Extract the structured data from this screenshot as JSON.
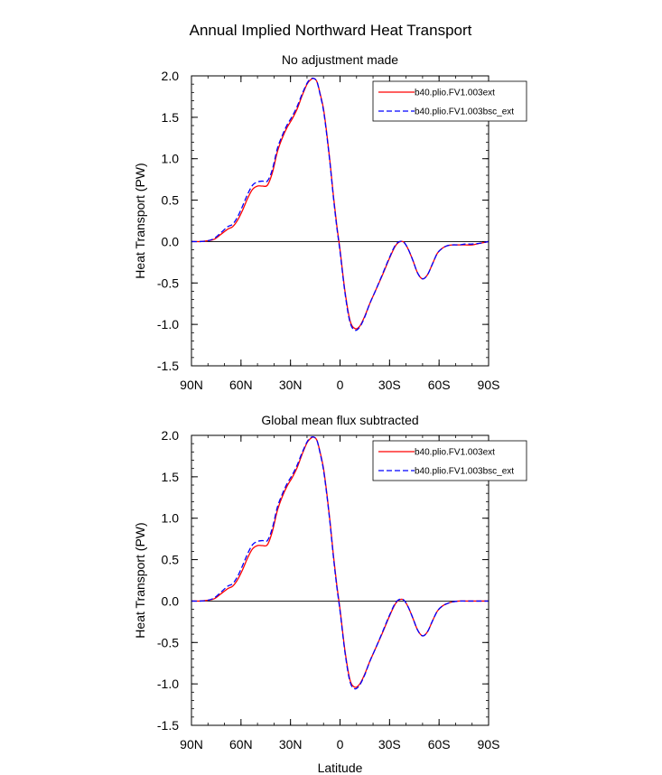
{
  "figure": {
    "title": "Annual Implied Northward Heat Transport"
  },
  "legend": {
    "placement": "top-right",
    "entries": [
      {
        "name": "b40.plio.FV1.003ext",
        "color": "#ff0000",
        "dash": "solid"
      },
      {
        "name": "b40.plio.FV1.003bsc_ext",
        "color": "#0000ff",
        "dash": "dashed"
      }
    ]
  },
  "chart_data": [
    {
      "type": "line",
      "title": "No adjustment made",
      "xlabel": "",
      "ylabel": "Heat Transport (PW)",
      "xlim": [
        90,
        -90
      ],
      "ylim": [
        -1.5,
        2.0
      ],
      "x_ticks": [
        {
          "value": 90,
          "label": "90N"
        },
        {
          "value": 60,
          "label": "60N"
        },
        {
          "value": 30,
          "label": "30N"
        },
        {
          "value": 0,
          "label": "0"
        },
        {
          "value": -30,
          "label": "30S"
        },
        {
          "value": -60,
          "label": "60S"
        },
        {
          "value": -90,
          "label": "90S"
        }
      ],
      "y_ticks": [
        {
          "value": 2.0,
          "label": "2.0"
        },
        {
          "value": 1.5,
          "label": "1.5"
        },
        {
          "value": 1.0,
          "label": "1.0"
        },
        {
          "value": 0.5,
          "label": "0.5"
        },
        {
          "value": 0.0,
          "label": "0.0"
        },
        {
          "value": -0.5,
          "label": "-0.5"
        },
        {
          "value": -1.0,
          "label": "-1.0"
        },
        {
          "value": -1.5,
          "label": "-1.5"
        }
      ],
      "grid": false,
      "zero_line": true,
      "x": [
        90,
        85,
        80,
        76,
        72,
        68,
        65,
        62,
        59,
        56,
        53,
        50,
        47,
        44,
        41,
        38,
        35,
        32,
        29,
        26,
        23,
        20,
        18,
        16,
        14,
        12,
        10,
        8,
        6,
        4,
        2,
        0,
        -3,
        -6,
        -9,
        -12,
        -15,
        -18,
        -22,
        -26,
        -30,
        -34,
        -38,
        -41,
        -44,
        -47,
        -50,
        -53,
        -56,
        -59,
        -62,
        -65,
        -68,
        -72,
        -76,
        -80,
        -85,
        -90
      ],
      "series": [
        {
          "name": "b40.plio.FV1.003ext",
          "values": [
            0.0,
            0.0,
            0.01,
            0.03,
            0.09,
            0.15,
            0.18,
            0.26,
            0.38,
            0.52,
            0.63,
            0.67,
            0.67,
            0.68,
            0.83,
            1.08,
            1.25,
            1.38,
            1.48,
            1.6,
            1.76,
            1.9,
            1.95,
            1.97,
            1.93,
            1.78,
            1.6,
            1.3,
            0.95,
            0.55,
            0.2,
            -0.1,
            -0.6,
            -0.95,
            -1.05,
            -1.02,
            -0.9,
            -0.75,
            -0.57,
            -0.39,
            -0.2,
            -0.04,
            0.0,
            -0.08,
            -0.22,
            -0.38,
            -0.45,
            -0.4,
            -0.27,
            -0.14,
            -0.08,
            -0.05,
            -0.04,
            -0.04,
            -0.04,
            -0.04,
            -0.02,
            0.0
          ]
        },
        {
          "name": "b40.plio.FV1.003bsc_ext",
          "values": [
            0.0,
            0.0,
            0.01,
            0.04,
            0.11,
            0.18,
            0.21,
            0.3,
            0.43,
            0.57,
            0.68,
            0.72,
            0.73,
            0.73,
            0.87,
            1.12,
            1.28,
            1.41,
            1.51,
            1.63,
            1.78,
            1.91,
            1.96,
            1.97,
            1.93,
            1.77,
            1.58,
            1.28,
            0.93,
            0.53,
            0.18,
            -0.12,
            -0.62,
            -0.97,
            -1.07,
            -1.03,
            -0.91,
            -0.75,
            -0.57,
            -0.38,
            -0.19,
            -0.03,
            0.0,
            -0.08,
            -0.22,
            -0.38,
            -0.45,
            -0.4,
            -0.27,
            -0.14,
            -0.08,
            -0.05,
            -0.04,
            -0.04,
            -0.03,
            -0.03,
            -0.02,
            0.0
          ]
        }
      ]
    },
    {
      "type": "line",
      "title": "Global mean flux subtracted",
      "xlabel": "Latitude",
      "ylabel": "Heat Transport (PW)",
      "xlim": [
        90,
        -90
      ],
      "ylim": [
        -1.5,
        2.0
      ],
      "x_ticks": [
        {
          "value": 90,
          "label": "90N"
        },
        {
          "value": 60,
          "label": "60N"
        },
        {
          "value": 30,
          "label": "30N"
        },
        {
          "value": 0,
          "label": "0"
        },
        {
          "value": -30,
          "label": "30S"
        },
        {
          "value": -60,
          "label": "60S"
        },
        {
          "value": -90,
          "label": "90S"
        }
      ],
      "y_ticks": [
        {
          "value": 2.0,
          "label": "2.0"
        },
        {
          "value": 1.5,
          "label": "1.5"
        },
        {
          "value": 1.0,
          "label": "1.0"
        },
        {
          "value": 0.5,
          "label": "0.5"
        },
        {
          "value": 0.0,
          "label": "0.0"
        },
        {
          "value": -0.5,
          "label": "-0.5"
        },
        {
          "value": -1.0,
          "label": "-1.0"
        },
        {
          "value": -1.5,
          "label": "-1.5"
        }
      ],
      "grid": false,
      "zero_line": true,
      "x": [
        90,
        85,
        80,
        76,
        72,
        68,
        65,
        62,
        59,
        56,
        53,
        50,
        47,
        44,
        41,
        38,
        35,
        32,
        29,
        26,
        23,
        20,
        18,
        16,
        14,
        12,
        10,
        8,
        6,
        4,
        2,
        0,
        -3,
        -6,
        -9,
        -12,
        -15,
        -18,
        -22,
        -26,
        -30,
        -34,
        -38,
        -41,
        -44,
        -47,
        -50,
        -53,
        -56,
        -59,
        -62,
        -65,
        -68,
        -72,
        -76,
        -80,
        -85,
        -90
      ],
      "series": [
        {
          "name": "b40.plio.FV1.003ext",
          "values": [
            0.0,
            0.0,
            0.01,
            0.03,
            0.09,
            0.15,
            0.18,
            0.26,
            0.38,
            0.52,
            0.63,
            0.67,
            0.67,
            0.68,
            0.84,
            1.09,
            1.26,
            1.39,
            1.49,
            1.61,
            1.77,
            1.91,
            1.96,
            1.98,
            1.94,
            1.79,
            1.6,
            1.3,
            0.95,
            0.55,
            0.2,
            -0.1,
            -0.6,
            -0.95,
            -1.04,
            -1.0,
            -0.88,
            -0.73,
            -0.55,
            -0.37,
            -0.18,
            -0.02,
            0.02,
            -0.06,
            -0.2,
            -0.35,
            -0.42,
            -0.37,
            -0.24,
            -0.12,
            -0.06,
            -0.03,
            -0.01,
            0.0,
            0.0,
            0.0,
            0.0,
            0.0
          ]
        },
        {
          "name": "b40.plio.FV1.003bsc_ext",
          "values": [
            0.0,
            0.0,
            0.01,
            0.04,
            0.11,
            0.18,
            0.21,
            0.3,
            0.43,
            0.57,
            0.68,
            0.72,
            0.73,
            0.73,
            0.88,
            1.13,
            1.29,
            1.42,
            1.52,
            1.64,
            1.79,
            1.92,
            1.97,
            1.98,
            1.94,
            1.78,
            1.58,
            1.28,
            0.93,
            0.53,
            0.18,
            -0.12,
            -0.62,
            -0.97,
            -1.06,
            -1.01,
            -0.89,
            -0.73,
            -0.55,
            -0.36,
            -0.17,
            -0.01,
            0.02,
            -0.06,
            -0.2,
            -0.35,
            -0.42,
            -0.37,
            -0.24,
            -0.12,
            -0.06,
            -0.03,
            -0.01,
            0.0,
            0.0,
            0.0,
            0.0,
            0.0
          ]
        }
      ]
    }
  ]
}
